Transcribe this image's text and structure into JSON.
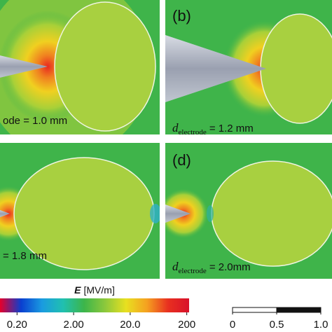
{
  "panels": [
    {
      "value_text": "ode = 1.0 mm"
    },
    {
      "label": "(b)",
      "symbol": "d",
      "subscript": "electrode",
      "value_text": "= 1.2 mm"
    },
    {
      "value_text": "= 1.8 mm"
    },
    {
      "label": "(d)",
      "symbol": "d",
      "subscript": "electrode",
      "value_text": "= 2.0mm"
    }
  ],
  "colorbar": {
    "title_symbol": "E",
    "title_unit": "[MV/m]",
    "log_scale": true,
    "lim": [
      0.1,
      220
    ],
    "ticks": [
      {
        "value": 0.2,
        "label": "0.20"
      },
      {
        "value": 2,
        "label": "2.00"
      },
      {
        "value": 20,
        "label": "20.0"
      },
      200
    ],
    "colors": [
      "#e6002a",
      "#0a3fd0",
      "#1a9be0",
      "#20c0b0",
      "#3cb54a",
      "#8cc83c",
      "#e8e020",
      "#f5a020",
      "#e83020",
      "#d8102a"
    ]
  },
  "scale_bar": {
    "lim": [
      0,
      1
    ],
    "ticks": [
      0,
      0.5,
      {
        "value": 1,
        "label": "1.0"
      }
    ]
  }
}
